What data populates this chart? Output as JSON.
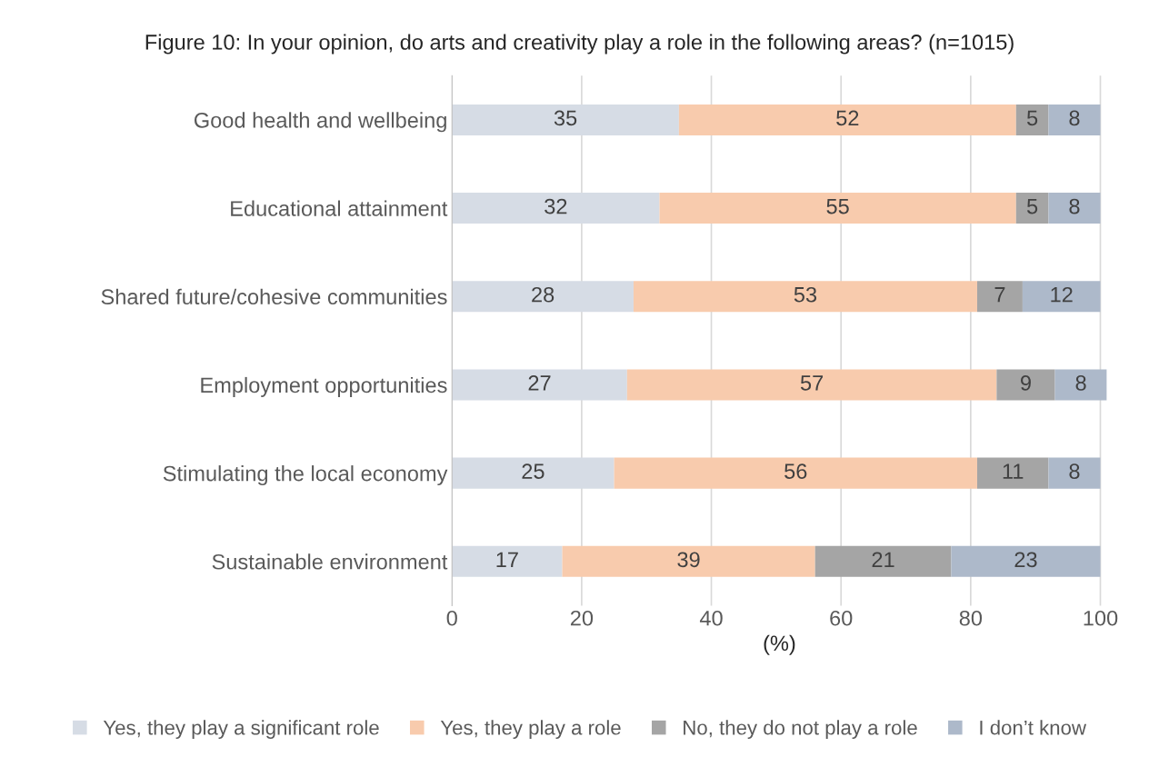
{
  "chart_data": {
    "type": "bar",
    "orientation": "horizontal",
    "stacked": true,
    "title": "Figure 10: In your opinion, do arts and creativity play a role in the following areas? (n=1015)",
    "xlabel": "(%)",
    "categories": [
      "Good health and wellbeing",
      "Educational attainment",
      "Shared future/cohesive communities",
      "Employment opportunities",
      "Stimulating the local economy",
      "Sustainable environment"
    ],
    "series": [
      {
        "name": "Yes, they play a significant role",
        "color": "#d6dce5",
        "values": [
          35,
          32,
          28,
          27,
          25,
          17
        ]
      },
      {
        "name": "Yes, they play a role",
        "color": "#f8cbad",
        "values": [
          52,
          55,
          53,
          57,
          56,
          39
        ]
      },
      {
        "name": "No, they do not play a role",
        "color": "#a5a5a5",
        "values": [
          5,
          5,
          7,
          9,
          11,
          21
        ]
      },
      {
        "name": "I don’t know",
        "color": "#adb9ca",
        "values": [
          8,
          8,
          12,
          8,
          8,
          23
        ]
      }
    ],
    "xlim": [
      0,
      101
    ],
    "xticks": [
      0,
      20,
      40,
      60,
      80,
      100
    ],
    "grid": "x",
    "data_labels": true,
    "legend": "bottom"
  }
}
